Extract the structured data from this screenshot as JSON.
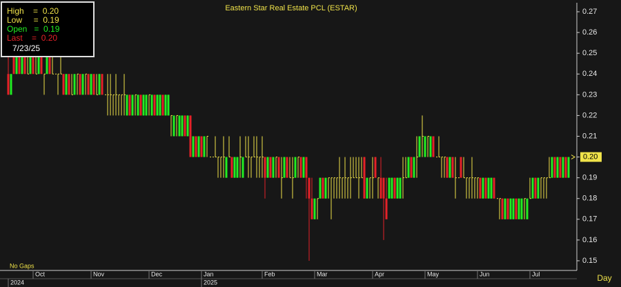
{
  "chart_data": {
    "type": "candlestick",
    "title": "Eastern Star Real Estate PCL (ESTAR)",
    "legend": [
      "High    =  0.20",
      "Low     =  0.19",
      "Open   =  0.19",
      "Last    =  0.20"
    ],
    "legend_date": "7/23/25",
    "mode_label": "No Gaps",
    "period_label": "Day",
    "up_color": "#22ee22",
    "down_color": "#e52228",
    "flat_color": "#f0e34a",
    "ylim": [
      0.146,
      0.274
    ],
    "yticks": [
      0.15,
      0.16,
      0.17,
      0.18,
      0.19,
      {
        "value": 0.2,
        "label": "0.20"
      },
      0.21,
      0.22,
      0.23,
      0.24,
      0.25,
      0.26,
      0.27
    ],
    "last_price_marker": {
      "value": 0.2,
      "label": "0.20"
    },
    "xlim": [
      -0.5,
      203.5
    ],
    "xticks": [
      {
        "value": 9,
        "label": "Oct"
      },
      {
        "value": 30,
        "label": "Nov"
      },
      {
        "value": 51,
        "label": "Dec"
      },
      {
        "value": 70,
        "label": "Jan"
      },
      {
        "value": 92,
        "label": "Feb"
      },
      {
        "value": 111,
        "label": "Mar"
      },
      {
        "value": 132,
        "label": "Apr"
      },
      {
        "value": 151,
        "label": "May"
      },
      {
        "value": 170,
        "label": "Jun"
      },
      {
        "value": 189,
        "label": "Jul"
      }
    ],
    "year_ticks": [
      {
        "value": 0,
        "label": "2024"
      },
      {
        "value": 70,
        "label": "2025"
      }
    ],
    "ohlc": [
      [
        0.24,
        0.25,
        0.23,
        0.23
      ],
      [
        0.23,
        0.24,
        0.23,
        0.24
      ],
      [
        0.25,
        0.25,
        0.24,
        0.24
      ],
      [
        0.24,
        0.25,
        0.24,
        0.25
      ],
      [
        0.25,
        0.25,
        0.24,
        0.24
      ],
      [
        0.24,
        0.25,
        0.24,
        0.25
      ],
      [
        0.25,
        0.25,
        0.24,
        0.24
      ],
      [
        0.24,
        0.25,
        0.24,
        0.24
      ],
      [
        0.24,
        0.25,
        0.24,
        0.25
      ],
      [
        0.25,
        0.25,
        0.24,
        0.24
      ],
      [
        0.24,
        0.25,
        0.24,
        0.24
      ],
      [
        0.24,
        0.25,
        0.24,
        0.25
      ],
      [
        0.25,
        0.25,
        0.24,
        0.24
      ],
      [
        0.24,
        0.24,
        0.23,
        0.24
      ],
      [
        0.24,
        0.25,
        0.24,
        0.25
      ],
      [
        0.25,
        0.25,
        0.24,
        0.24
      ],
      [
        0.24,
        0.25,
        0.24,
        0.24
      ],
      [
        0.24,
        0.24,
        0.24,
        0.24
      ],
      [
        0.24,
        0.24,
        0.23,
        0.24
      ],
      [
        0.24,
        0.25,
        0.24,
        0.24
      ],
      [
        0.24,
        0.24,
        0.23,
        0.23
      ],
      [
        0.23,
        0.24,
        0.23,
        0.24
      ],
      [
        0.24,
        0.24,
        0.23,
        0.23
      ],
      [
        0.23,
        0.24,
        0.23,
        0.23
      ],
      [
        0.23,
        0.24,
        0.23,
        0.24
      ],
      [
        0.24,
        0.24,
        0.23,
        0.24
      ],
      [
        0.24,
        0.24,
        0.23,
        0.23
      ],
      [
        0.23,
        0.24,
        0.23,
        0.24
      ],
      [
        0.24,
        0.24,
        0.23,
        0.24
      ],
      [
        0.24,
        0.24,
        0.23,
        0.23
      ],
      [
        0.23,
        0.24,
        0.23,
        0.24
      ],
      [
        0.24,
        0.24,
        0.23,
        0.23
      ],
      [
        0.23,
        0.24,
        0.23,
        0.23
      ],
      [
        0.23,
        0.24,
        0.23,
        0.24
      ],
      [
        0.24,
        0.24,
        0.23,
        0.23
      ],
      [
        0.23,
        0.23,
        0.23,
        0.23
      ],
      [
        0.23,
        0.24,
        0.22,
        0.23
      ],
      [
        0.23,
        0.24,
        0.22,
        0.23
      ],
      [
        0.23,
        0.23,
        0.22,
        0.23
      ],
      [
        0.23,
        0.24,
        0.22,
        0.23
      ],
      [
        0.23,
        0.23,
        0.22,
        0.23
      ],
      [
        0.23,
        0.23,
        0.22,
        0.23
      ],
      [
        0.23,
        0.24,
        0.22,
        0.23
      ],
      [
        0.22,
        0.23,
        0.22,
        0.23
      ],
      [
        0.23,
        0.23,
        0.22,
        0.22
      ],
      [
        0.22,
        0.23,
        0.22,
        0.23
      ],
      [
        0.23,
        0.23,
        0.22,
        0.23
      ],
      [
        0.22,
        0.23,
        0.22,
        0.23
      ],
      [
        0.23,
        0.23,
        0.22,
        0.22
      ],
      [
        0.22,
        0.23,
        0.22,
        0.23
      ],
      [
        0.22,
        0.23,
        0.22,
        0.23
      ],
      [
        0.23,
        0.23,
        0.22,
        0.23
      ],
      [
        0.22,
        0.23,
        0.22,
        0.23
      ],
      [
        0.23,
        0.23,
        0.22,
        0.22
      ],
      [
        0.22,
        0.23,
        0.22,
        0.23
      ],
      [
        0.22,
        0.23,
        0.22,
        0.23
      ],
      [
        0.23,
        0.23,
        0.22,
        0.22
      ],
      [
        0.22,
        0.23,
        0.22,
        0.23
      ],
      [
        0.22,
        0.23,
        0.22,
        0.23
      ],
      [
        0.22,
        0.22,
        0.21,
        0.22
      ],
      [
        0.21,
        0.22,
        0.21,
        0.22
      ],
      [
        0.22,
        0.22,
        0.21,
        0.22
      ],
      [
        0.21,
        0.22,
        0.21,
        0.22
      ],
      [
        0.21,
        0.22,
        0.21,
        0.22
      ],
      [
        0.22,
        0.22,
        0.21,
        0.21
      ],
      [
        0.21,
        0.22,
        0.21,
        0.22
      ],
      [
        0.22,
        0.22,
        0.2,
        0.2
      ],
      [
        0.2,
        0.21,
        0.2,
        0.21
      ],
      [
        0.21,
        0.21,
        0.2,
        0.2
      ],
      [
        0.2,
        0.21,
        0.2,
        0.21
      ],
      [
        0.21,
        0.21,
        0.2,
        0.2
      ],
      [
        0.2,
        0.21,
        0.2,
        0.21
      ],
      [
        0.21,
        0.21,
        0.2,
        0.21
      ],
      [
        0.2,
        0.2,
        0.2,
        0.2
      ],
      [
        0.2,
        0.2,
        0.2,
        0.2
      ],
      [
        0.2,
        0.21,
        0.2,
        0.2
      ],
      [
        0.2,
        0.2,
        0.19,
        0.2
      ],
      [
        0.2,
        0.2,
        0.19,
        0.2
      ],
      [
        0.2,
        0.21,
        0.19,
        0.2
      ],
      [
        0.19,
        0.2,
        0.19,
        0.2
      ],
      [
        0.2,
        0.21,
        0.2,
        0.2
      ],
      [
        0.2,
        0.2,
        0.19,
        0.19
      ],
      [
        0.19,
        0.2,
        0.19,
        0.2
      ],
      [
        0.19,
        0.2,
        0.19,
        0.2
      ],
      [
        0.2,
        0.21,
        0.19,
        0.2
      ],
      [
        0.19,
        0.2,
        0.19,
        0.2
      ],
      [
        0.2,
        0.21,
        0.2,
        0.2
      ],
      [
        0.2,
        0.21,
        0.19,
        0.2
      ],
      [
        0.2,
        0.2,
        0.19,
        0.2
      ],
      [
        0.2,
        0.21,
        0.2,
        0.2
      ],
      [
        0.2,
        0.21,
        0.19,
        0.2
      ],
      [
        0.2,
        0.2,
        0.19,
        0.2
      ],
      [
        0.2,
        0.21,
        0.19,
        0.2
      ],
      [
        0.2,
        0.2,
        0.18,
        0.19
      ],
      [
        0.19,
        0.2,
        0.19,
        0.2
      ],
      [
        0.2,
        0.2,
        0.19,
        0.19
      ],
      [
        0.19,
        0.2,
        0.19,
        0.2
      ],
      [
        0.2,
        0.2,
        0.19,
        0.2
      ],
      [
        0.2,
        0.2,
        0.19,
        0.19
      ],
      [
        0.19,
        0.2,
        0.18,
        0.19
      ],
      [
        0.19,
        0.2,
        0.19,
        0.2
      ],
      [
        0.2,
        0.2,
        0.19,
        0.19
      ],
      [
        0.19,
        0.2,
        0.19,
        0.19
      ],
      [
        0.19,
        0.2,
        0.18,
        0.19
      ],
      [
        0.19,
        0.2,
        0.19,
        0.2
      ],
      [
        0.2,
        0.2,
        0.19,
        0.2
      ],
      [
        0.2,
        0.2,
        0.19,
        0.19
      ],
      [
        0.19,
        0.2,
        0.19,
        0.2
      ],
      [
        0.2,
        0.2,
        0.18,
        0.19
      ],
      [
        0.19,
        0.19,
        0.15,
        0.18
      ],
      [
        0.18,
        0.19,
        0.17,
        0.17
      ],
      [
        0.17,
        0.18,
        0.17,
        0.18
      ],
      [
        0.18,
        0.18,
        0.17,
        0.18
      ],
      [
        0.18,
        0.19,
        0.18,
        0.19
      ],
      [
        0.19,
        0.19,
        0.18,
        0.18
      ],
      [
        0.18,
        0.19,
        0.18,
        0.19
      ],
      [
        0.19,
        0.19,
        0.18,
        0.19
      ],
      [
        0.19,
        0.19,
        0.17,
        0.19
      ],
      [
        0.19,
        0.19,
        0.18,
        0.19
      ],
      [
        0.19,
        0.19,
        0.18,
        0.19
      ],
      [
        0.19,
        0.2,
        0.18,
        0.19
      ],
      [
        0.19,
        0.19,
        0.18,
        0.19
      ],
      [
        0.19,
        0.2,
        0.18,
        0.19
      ],
      [
        0.19,
        0.19,
        0.18,
        0.19
      ],
      [
        0.19,
        0.2,
        0.18,
        0.19
      ],
      [
        0.19,
        0.2,
        0.19,
        0.19
      ],
      [
        0.19,
        0.2,
        0.19,
        0.19
      ],
      [
        0.19,
        0.2,
        0.18,
        0.19
      ],
      [
        0.19,
        0.2,
        0.19,
        0.19
      ],
      [
        0.2,
        0.2,
        0.18,
        0.18
      ],
      [
        0.18,
        0.19,
        0.18,
        0.19
      ],
      [
        0.19,
        0.19,
        0.18,
        0.19
      ],
      [
        0.19,
        0.2,
        0.18,
        0.19
      ],
      [
        0.2,
        0.2,
        0.19,
        0.19
      ],
      [
        0.19,
        0.19,
        0.18,
        0.19
      ],
      [
        0.19,
        0.2,
        0.18,
        0.18
      ],
      [
        0.19,
        0.19,
        0.16,
        0.18
      ],
      [
        0.18,
        0.19,
        0.17,
        0.17
      ],
      [
        0.18,
        0.19,
        0.18,
        0.19
      ],
      [
        0.18,
        0.19,
        0.18,
        0.19
      ],
      [
        0.19,
        0.19,
        0.18,
        0.18
      ],
      [
        0.18,
        0.19,
        0.18,
        0.19
      ],
      [
        0.18,
        0.19,
        0.18,
        0.19
      ],
      [
        0.19,
        0.2,
        0.18,
        0.19
      ],
      [
        0.19,
        0.2,
        0.19,
        0.19
      ],
      [
        0.19,
        0.2,
        0.19,
        0.2
      ],
      [
        0.2,
        0.2,
        0.19,
        0.19
      ],
      [
        0.19,
        0.2,
        0.19,
        0.2
      ],
      [
        0.2,
        0.21,
        0.19,
        0.2
      ],
      [
        0.2,
        0.21,
        0.2,
        0.21
      ],
      [
        0.21,
        0.22,
        0.2,
        0.21
      ],
      [
        0.2,
        0.21,
        0.2,
        0.21
      ],
      [
        0.21,
        0.21,
        0.2,
        0.21
      ],
      [
        0.2,
        0.21,
        0.2,
        0.21
      ],
      [
        0.21,
        0.21,
        0.2,
        0.2
      ],
      [
        0.2,
        0.2,
        0.2,
        0.2
      ],
      [
        0.2,
        0.21,
        0.2,
        0.2
      ],
      [
        0.2,
        0.2,
        0.19,
        0.2
      ],
      [
        0.2,
        0.2,
        0.19,
        0.2
      ],
      [
        0.2,
        0.2,
        0.19,
        0.19
      ],
      [
        0.19,
        0.2,
        0.19,
        0.2
      ],
      [
        0.2,
        0.2,
        0.19,
        0.19
      ],
      [
        0.19,
        0.2,
        0.18,
        0.19
      ],
      [
        0.19,
        0.19,
        0.19,
        0.19
      ],
      [
        0.2,
        0.2,
        0.19,
        0.19
      ],
      [
        0.19,
        0.2,
        0.19,
        0.19
      ],
      [
        0.19,
        0.19,
        0.18,
        0.19
      ],
      [
        0.19,
        0.19,
        0.18,
        0.19
      ],
      [
        0.19,
        0.2,
        0.18,
        0.19
      ],
      [
        0.19,
        0.19,
        0.18,
        0.19
      ],
      [
        0.19,
        0.19,
        0.18,
        0.19
      ],
      [
        0.19,
        0.19,
        0.18,
        0.18
      ],
      [
        0.18,
        0.19,
        0.18,
        0.19
      ],
      [
        0.19,
        0.19,
        0.18,
        0.18
      ],
      [
        0.18,
        0.19,
        0.18,
        0.19
      ],
      [
        0.18,
        0.19,
        0.18,
        0.19
      ],
      [
        0.19,
        0.19,
        0.18,
        0.18
      ],
      [
        0.18,
        0.18,
        0.18,
        0.18
      ],
      [
        0.18,
        0.18,
        0.17,
        0.18
      ],
      [
        0.18,
        0.18,
        0.17,
        0.17
      ],
      [
        0.17,
        0.18,
        0.17,
        0.18
      ],
      [
        0.18,
        0.18,
        0.17,
        0.17
      ],
      [
        0.17,
        0.18,
        0.17,
        0.18
      ],
      [
        0.17,
        0.18,
        0.17,
        0.18
      ],
      [
        0.18,
        0.18,
        0.17,
        0.17
      ],
      [
        0.17,
        0.18,
        0.17,
        0.18
      ],
      [
        0.17,
        0.18,
        0.17,
        0.18
      ],
      [
        0.18,
        0.18,
        0.17,
        0.18
      ],
      [
        0.17,
        0.18,
        0.17,
        0.18
      ],
      [
        0.18,
        0.19,
        0.18,
        0.18
      ],
      [
        0.18,
        0.19,
        0.18,
        0.19
      ],
      [
        0.19,
        0.19,
        0.18,
        0.18
      ],
      [
        0.18,
        0.19,
        0.18,
        0.19
      ],
      [
        0.19,
        0.19,
        0.18,
        0.19
      ],
      [
        0.19,
        0.19,
        0.18,
        0.19
      ],
      [
        0.19,
        0.19,
        0.18,
        0.19
      ],
      [
        0.19,
        0.2,
        0.19,
        0.19
      ],
      [
        0.19,
        0.2,
        0.19,
        0.2
      ],
      [
        0.2,
        0.2,
        0.19,
        0.19
      ],
      [
        0.19,
        0.2,
        0.19,
        0.2
      ],
      [
        0.2,
        0.2,
        0.19,
        0.19
      ],
      [
        0.19,
        0.2,
        0.19,
        0.2
      ],
      [
        0.2,
        0.2,
        0.19,
        0.19
      ],
      [
        0.19,
        0.2,
        0.19,
        0.2
      ]
    ]
  }
}
